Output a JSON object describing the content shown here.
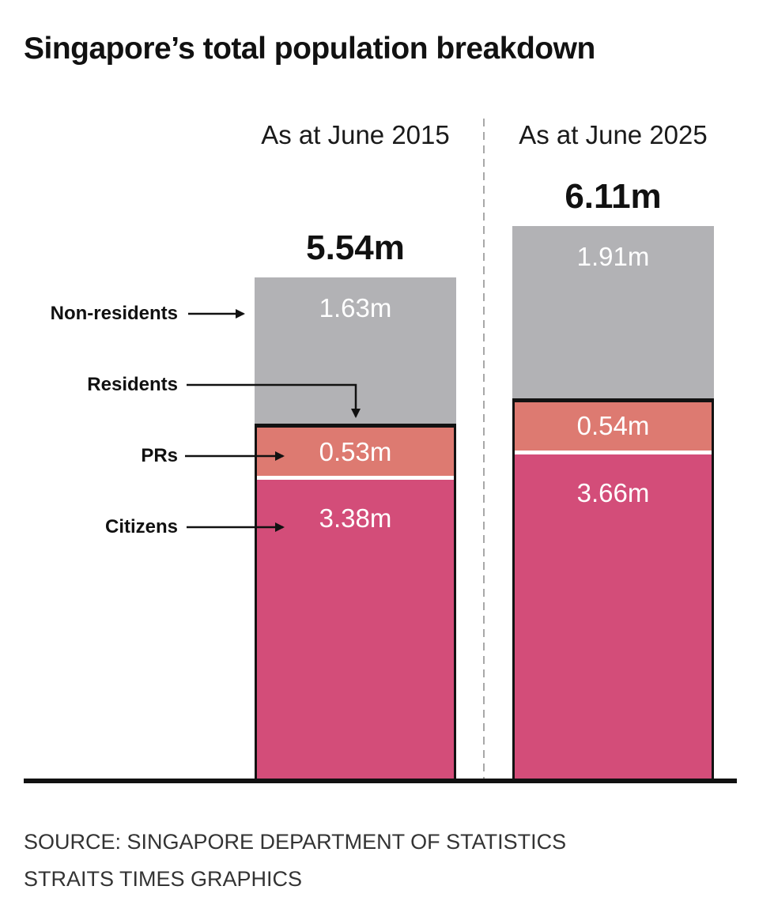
{
  "title": "Singapore’s total population breakdown",
  "annotations": {
    "non_residents": "Non-residents",
    "residents": "Residents",
    "prs": "PRs",
    "citizens": "Citizens"
  },
  "source": {
    "line1": "SOURCE: SINGAPORE DEPARTMENT OF STATISTICS",
    "line2": "STRAITS TIMES GRAPHICS"
  },
  "chart_data": {
    "type": "bar",
    "stacked": true,
    "title": "Singapore’s total population breakdown",
    "unit": "million people",
    "categories": [
      "As at June 2015",
      "As at June 2025"
    ],
    "totals": [
      5.54,
      6.11
    ],
    "total_labels": [
      "5.54m",
      "6.11m"
    ],
    "series": [
      {
        "name": "Non-residents",
        "values": [
          1.63,
          1.91
        ],
        "labels": [
          "1.63m",
          "1.91m"
        ],
        "color": "#b2b2b5"
      },
      {
        "name": "PRs",
        "values": [
          0.53,
          0.54
        ],
        "labels": [
          "0.53m",
          "0.54m"
        ],
        "color": "#dd7a71"
      },
      {
        "name": "Citizens",
        "values": [
          3.38,
          3.66
        ],
        "labels": [
          "3.38m",
          "3.66m"
        ],
        "color": "#d34d79"
      }
    ],
    "legend_position": "left-annotations",
    "grid": false,
    "baseline_color": "#111111",
    "divider_color": "#a8a8a8"
  }
}
